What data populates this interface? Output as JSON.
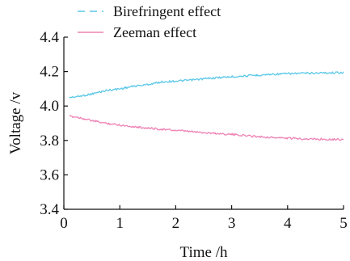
{
  "chart_data": {
    "type": "line",
    "title": "",
    "xlabel": "Time /h",
    "ylabel": "Voltage /v",
    "xlim": [
      0,
      5
    ],
    "ylim": [
      3.4,
      4.4
    ],
    "x_ticks": [
      0,
      1,
      2,
      3,
      4,
      5
    ],
    "x_tick_labels": [
      "0",
      "1",
      "2",
      "3",
      "4",
      "5"
    ],
    "y_ticks": [
      3.4,
      3.6,
      3.8,
      4.0,
      4.2,
      4.4
    ],
    "y_tick_labels": [
      "3.4",
      "3.6",
      "3.8",
      "4.0",
      "4.2",
      "4.4"
    ],
    "grid": false,
    "legend_position": "top",
    "series": [
      {
        "name": "Birefringent effect",
        "color": "#5bc8e8",
        "line_style": "dashed",
        "x": [
          0.1,
          0.25,
          0.5,
          0.75,
          1.0,
          1.25,
          1.5,
          1.75,
          2.0,
          2.25,
          2.5,
          2.75,
          3.0,
          3.25,
          3.5,
          3.75,
          4.0,
          4.25,
          4.5,
          4.75,
          5.0
        ],
        "values": [
          4.05,
          4.055,
          4.07,
          4.09,
          4.1,
          4.115,
          4.125,
          4.14,
          4.145,
          4.15,
          4.158,
          4.165,
          4.17,
          4.175,
          4.18,
          4.185,
          4.188,
          4.19,
          4.192,
          4.193,
          4.195
        ]
      },
      {
        "name": "Zeeman effect",
        "color": "#ee82b4",
        "line_style": "solid",
        "x": [
          0.1,
          0.25,
          0.5,
          0.75,
          1.0,
          1.25,
          1.5,
          1.75,
          2.0,
          2.25,
          2.5,
          2.75,
          3.0,
          3.25,
          3.5,
          3.75,
          4.0,
          4.25,
          4.5,
          4.75,
          5.0
        ],
        "values": [
          3.94,
          3.935,
          3.915,
          3.9,
          3.89,
          3.88,
          3.872,
          3.865,
          3.858,
          3.852,
          3.846,
          3.84,
          3.835,
          3.828,
          3.822,
          3.817,
          3.813,
          3.81,
          3.808,
          3.807,
          3.806
        ]
      }
    ]
  }
}
